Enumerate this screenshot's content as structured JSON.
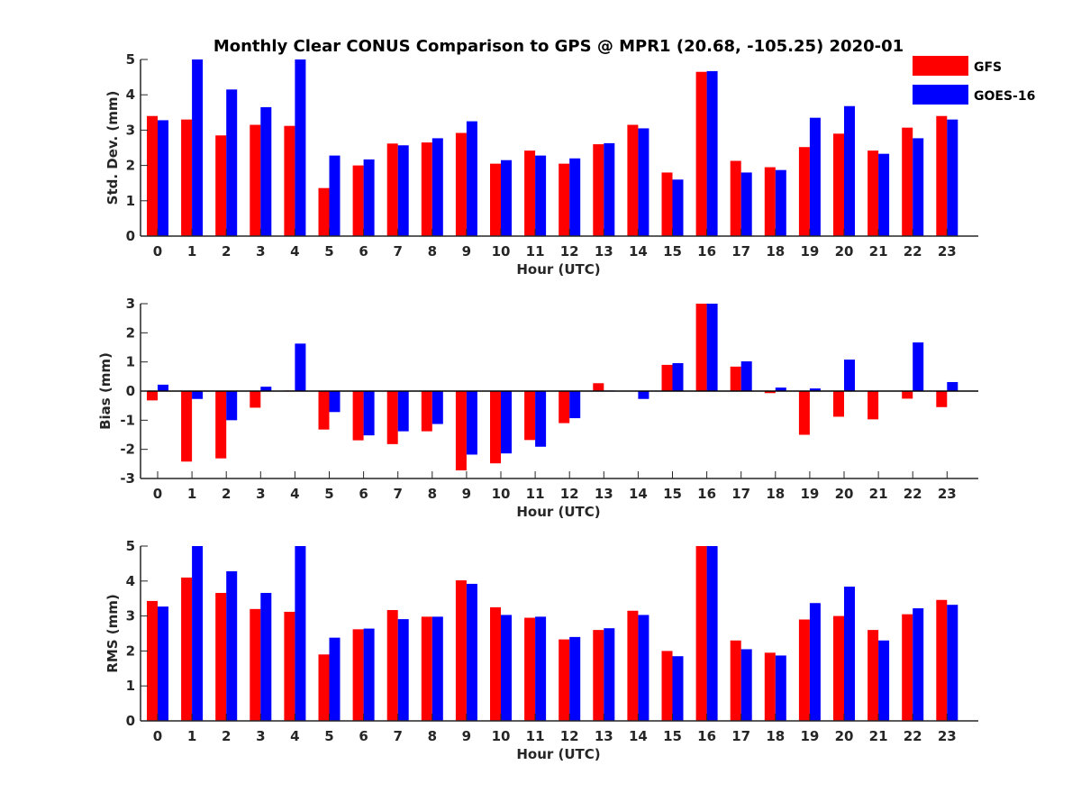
{
  "title": "Monthly Clear CONUS Comparison to GPS @ MPR1 (20.68, -105.25) 2020-01",
  "legend": [
    {
      "label": "GFS",
      "color": "#ff0000"
    },
    {
      "label": "GOES-16",
      "color": "#0000ff"
    }
  ],
  "chart_data": [
    {
      "type": "bar",
      "xlabel": "Hour (UTC)",
      "ylabel": "Std. Dev. (mm)",
      "ylim": [
        0,
        5
      ],
      "yticks": [
        0,
        1,
        2,
        3,
        4,
        5
      ],
      "categories": [
        "0",
        "1",
        "2",
        "3",
        "4",
        "5",
        "6",
        "7",
        "8",
        "9",
        "10",
        "11",
        "12",
        "13",
        "14",
        "15",
        "16",
        "17",
        "18",
        "19",
        "20",
        "21",
        "22",
        "23"
      ],
      "series": [
        {
          "name": "GFS",
          "color": "#ff0000",
          "values": [
            3.4,
            3.3,
            2.85,
            3.15,
            3.12,
            1.36,
            2.0,
            2.62,
            2.65,
            2.92,
            2.05,
            2.42,
            2.05,
            2.6,
            3.15,
            1.8,
            4.65,
            2.13,
            1.95,
            2.52,
            2.9,
            2.42,
            3.07,
            3.4
          ]
        },
        {
          "name": "GOES-16",
          "color": "#0000ff",
          "values": [
            3.28,
            5.0,
            4.15,
            3.65,
            5.0,
            2.28,
            2.17,
            2.57,
            2.77,
            3.25,
            2.15,
            2.28,
            2.2,
            2.63,
            3.05,
            1.6,
            4.67,
            1.8,
            1.87,
            3.35,
            3.68,
            2.33,
            2.77,
            3.3
          ]
        }
      ]
    },
    {
      "type": "bar",
      "xlabel": "Hour (UTC)",
      "ylabel": "Bias (mm)",
      "ylim": [
        -3,
        3
      ],
      "yticks": [
        -3,
        -2,
        -1,
        0,
        1,
        2,
        3
      ],
      "categories": [
        "0",
        "1",
        "2",
        "3",
        "4",
        "5",
        "6",
        "7",
        "8",
        "9",
        "10",
        "11",
        "12",
        "13",
        "14",
        "15",
        "16",
        "17",
        "18",
        "19",
        "20",
        "21",
        "22",
        "23"
      ],
      "series": [
        {
          "name": "GFS",
          "color": "#ff0000",
          "values": [
            -0.32,
            -2.42,
            -2.31,
            -0.57,
            0.02,
            -1.32,
            -1.69,
            -1.82,
            -1.38,
            -2.72,
            -2.48,
            -1.68,
            -1.1,
            0.27,
            0.0,
            0.9,
            3.0,
            0.84,
            -0.07,
            -1.5,
            -0.88,
            -0.97,
            -0.26,
            -0.55
          ]
        },
        {
          "name": "GOES-16",
          "color": "#0000ff",
          "values": [
            0.22,
            -0.27,
            -1.0,
            0.15,
            1.63,
            -0.72,
            -1.52,
            -1.38,
            -1.13,
            -2.18,
            -2.14,
            -1.91,
            -0.93,
            0.02,
            -0.27,
            0.96,
            3.0,
            1.02,
            0.12,
            0.09,
            1.08,
            0.0,
            1.67,
            0.31
          ]
        }
      ]
    },
    {
      "type": "bar",
      "xlabel": "Hour (UTC)",
      "ylabel": "RMS (mm)",
      "ylim": [
        0,
        5
      ],
      "yticks": [
        0,
        1,
        2,
        3,
        4,
        5
      ],
      "categories": [
        "0",
        "1",
        "2",
        "3",
        "4",
        "5",
        "6",
        "7",
        "8",
        "9",
        "10",
        "11",
        "12",
        "13",
        "14",
        "15",
        "16",
        "17",
        "18",
        "19",
        "20",
        "21",
        "22",
        "23"
      ],
      "series": [
        {
          "name": "GFS",
          "color": "#ff0000",
          "values": [
            3.43,
            4.1,
            3.66,
            3.2,
            3.12,
            1.9,
            2.62,
            3.17,
            2.98,
            4.02,
            3.25,
            2.95,
            2.33,
            2.6,
            3.15,
            2.0,
            5.0,
            2.3,
            1.95,
            2.9,
            3.0,
            2.6,
            3.05,
            3.46
          ]
        },
        {
          "name": "GOES-16",
          "color": "#0000ff",
          "values": [
            3.27,
            5.0,
            4.28,
            3.66,
            5.0,
            2.38,
            2.64,
            2.91,
            2.98,
            3.92,
            3.03,
            2.98,
            2.4,
            2.65,
            3.03,
            1.85,
            5.0,
            2.05,
            1.87,
            3.37,
            3.84,
            2.3,
            3.22,
            3.32
          ]
        }
      ]
    }
  ]
}
